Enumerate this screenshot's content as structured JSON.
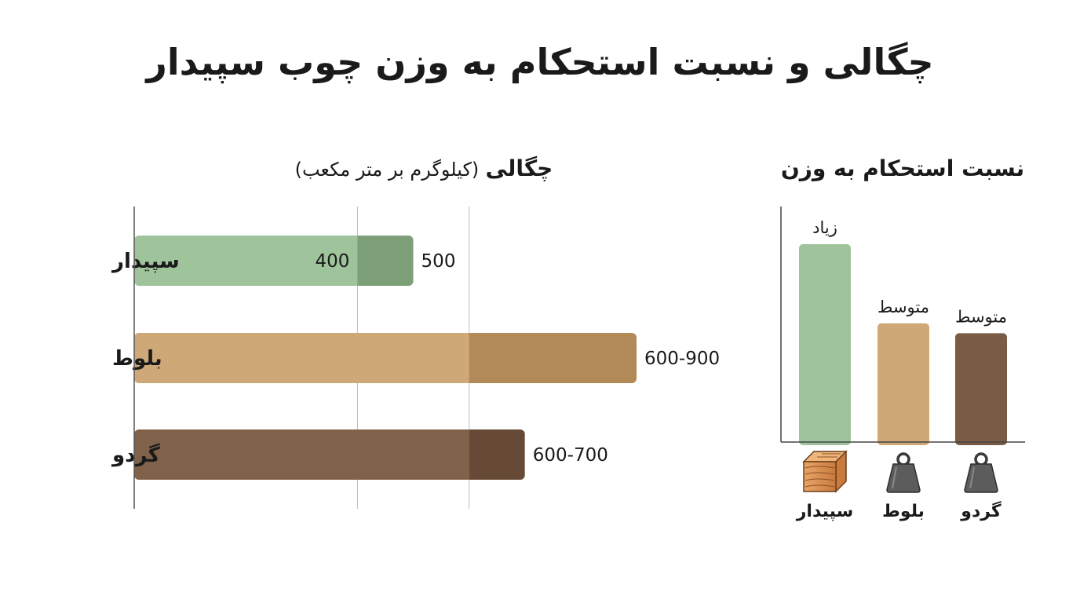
{
  "title": "چگالی و نسبت استحکام به وزن چوب سپیدار",
  "chart_data": [
    {
      "type": "bar",
      "orientation": "horizontal",
      "title": "چگالی",
      "unit": "(کیلوگرم بر متر مکعب)",
      "categories": [
        "سپیدار",
        "بلوط",
        "گردو"
      ],
      "ranges": [
        [
          400,
          500
        ],
        [
          600,
          900
        ],
        [
          600,
          700
        ]
      ],
      "value_labels": [
        "500",
        "600-900",
        "600-700"
      ],
      "inner_labels": [
        "400",
        "",
        ""
      ],
      "xlim": [
        0,
        900
      ],
      "reference_lines": [
        400,
        600
      ],
      "grid": false,
      "colors": {
        "light": [
          "#9fc39a",
          "#cfa878",
          "#80624a"
        ],
        "dark": [
          "#7c9f77",
          "#b18a58",
          "#664a36"
        ]
      }
    },
    {
      "type": "bar",
      "orientation": "vertical",
      "title": "نسبت استحکام به وزن",
      "categories": [
        "سپیدار",
        "بلوط",
        "گردو"
      ],
      "levels": [
        "زیاد",
        "متوسط",
        "متوسط"
      ],
      "relative_height": [
        1.0,
        0.6,
        0.55
      ],
      "icons": [
        "wood-block-icon",
        "weight-icon",
        "weight-icon"
      ],
      "colors": [
        "#9fc39a",
        "#cfa878",
        "#7a5c45"
      ],
      "grid": false
    }
  ]
}
